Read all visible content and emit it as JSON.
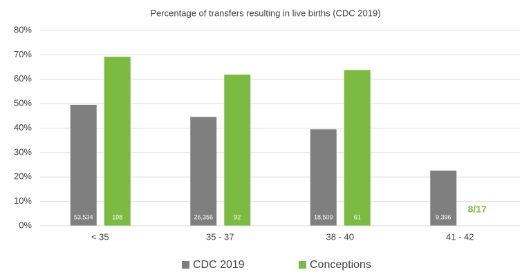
{
  "chart_data": {
    "type": "bar",
    "title": "Percentage of transfers resulting in live births (CDC 2019)",
    "categories": [
      "< 35",
      "35 - 37",
      "38 - 40",
      "41 - 42"
    ],
    "series": [
      {
        "name": "CDC 2019",
        "color": "#7f7f7f",
        "values": [
          49.5,
          44.6,
          39.5,
          22.6
        ],
        "annotations": [
          "53,534",
          "26,356",
          "18,509",
          "9,396"
        ]
      },
      {
        "name": "Conceptions",
        "color": "#7cbb42",
        "values": [
          69.2,
          61.9,
          63.8,
          null
        ],
        "annotations": [
          "198",
          "92",
          "61",
          "8/17"
        ]
      }
    ],
    "ylim": [
      0,
      80
    ],
    "yticks": [
      {
        "value": 0,
        "label": "0%"
      },
      {
        "value": 10,
        "label": "10%"
      },
      {
        "value": 20,
        "label": "20%"
      },
      {
        "value": 30,
        "label": "30%"
      },
      {
        "value": 40,
        "label": "40%"
      },
      {
        "value": 50,
        "label": "50%"
      },
      {
        "value": 60,
        "label": "60%"
      },
      {
        "value": 70,
        "label": "70%"
      },
      {
        "value": 80,
        "label": "80%"
      }
    ],
    "grid": true,
    "legend": "bottom"
  }
}
